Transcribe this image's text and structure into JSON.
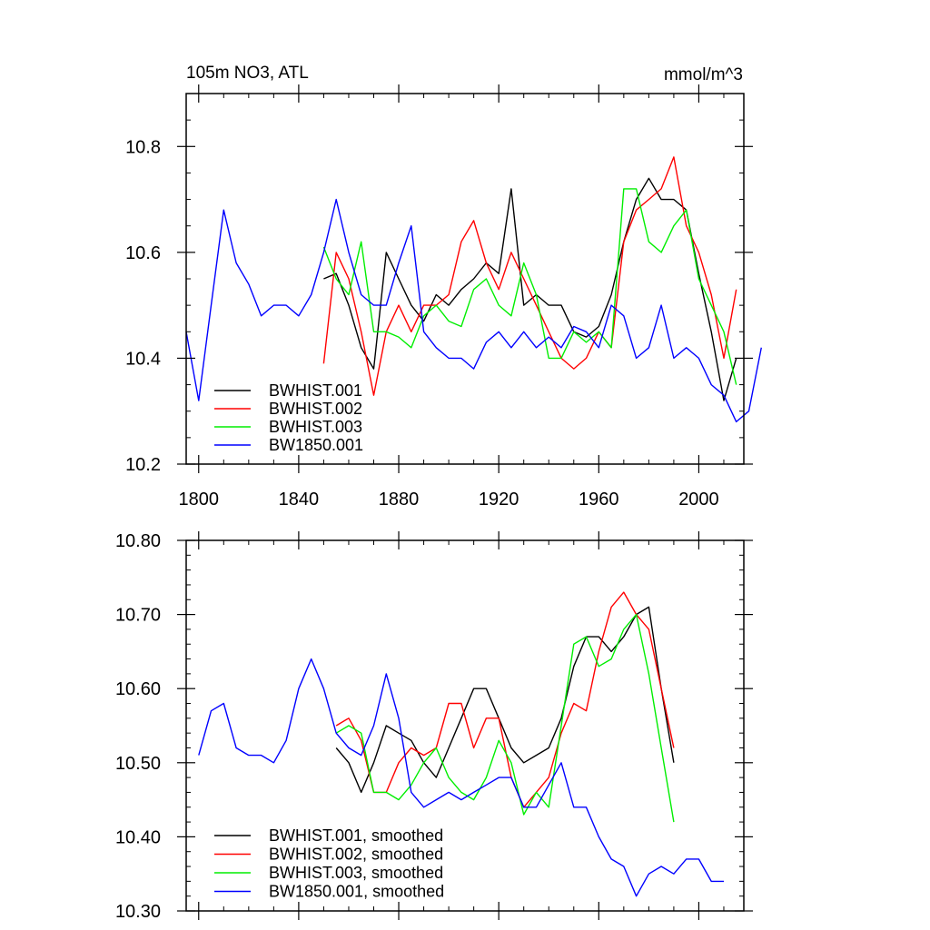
{
  "chart_data": [
    {
      "type": "line",
      "title_left": "105m NO3, ATL",
      "title_right": "mmol/m^3",
      "xlim": [
        1795,
        2018
      ],
      "ylim": [
        10.2,
        10.9
      ],
      "xticks": [
        1800,
        1840,
        1880,
        1920,
        1960,
        2000
      ],
      "yticks": [
        10.2,
        10.4,
        10.6,
        10.8
      ],
      "ytick_labels": [
        "10.2",
        "10.4",
        "10.6",
        "10.8"
      ],
      "legend_position": "bottom-left",
      "series": [
        {
          "name": "BWHIST.001",
          "color": "#000000",
          "x_start": 1850,
          "step": 5,
          "values": [
            10.55,
            10.56,
            10.5,
            10.42,
            10.38,
            10.6,
            10.55,
            10.5,
            10.47,
            10.52,
            10.5,
            10.53,
            10.55,
            10.58,
            10.56,
            10.72,
            10.5,
            10.52,
            10.5,
            10.5,
            10.45,
            10.44,
            10.46,
            10.52,
            10.62,
            10.7,
            10.74,
            10.7,
            10.7,
            10.68,
            10.56,
            10.45,
            10.32,
            10.4
          ]
        },
        {
          "name": "BWHIST.002",
          "color": "#ff0000",
          "x_start": 1850,
          "step": 5,
          "values": [
            10.39,
            10.6,
            10.55,
            10.45,
            10.33,
            10.45,
            10.5,
            10.45,
            10.5,
            10.5,
            10.52,
            10.62,
            10.66,
            10.58,
            10.53,
            10.6,
            10.55,
            10.5,
            10.45,
            10.4,
            10.38,
            10.4,
            10.45,
            10.42,
            10.62,
            10.68,
            10.7,
            10.72,
            10.78,
            10.65,
            10.6,
            10.52,
            10.4,
            10.53
          ]
        },
        {
          "name": "BWHIST.003",
          "color": "#00ee00",
          "x_start": 1850,
          "step": 5,
          "values": [
            10.61,
            10.55,
            10.52,
            10.62,
            10.45,
            10.45,
            10.44,
            10.42,
            10.48,
            10.5,
            10.47,
            10.46,
            10.53,
            10.55,
            10.5,
            10.48,
            10.58,
            10.52,
            10.4,
            10.4,
            10.45,
            10.43,
            10.45,
            10.42,
            10.72,
            10.72,
            10.62,
            10.6,
            10.65,
            10.68,
            10.55,
            10.5,
            10.45,
            10.35
          ]
        },
        {
          "name": "BW1850.001",
          "color": "#0000ff",
          "x_start": 1795,
          "step": 5,
          "values": [
            10.45,
            10.32,
            10.5,
            10.68,
            10.58,
            10.54,
            10.48,
            10.5,
            10.5,
            10.48,
            10.52,
            10.6,
            10.7,
            10.6,
            10.52,
            10.5,
            10.5,
            10.58,
            10.65,
            10.45,
            10.42,
            10.4,
            10.4,
            10.38,
            10.43,
            10.45,
            10.42,
            10.45,
            10.42,
            10.44,
            10.42,
            10.46,
            10.45,
            10.42,
            10.5,
            10.48,
            10.4,
            10.42,
            10.5,
            10.4,
            10.42,
            10.4,
            10.35,
            10.33,
            10.28,
            10.3,
            10.42
          ]
        }
      ]
    },
    {
      "type": "line",
      "xlim": [
        1795,
        2018
      ],
      "ylim": [
        10.3,
        10.8
      ],
      "xticks": [
        1800,
        1840,
        1880,
        1920,
        1960,
        2000
      ],
      "yticks": [
        10.3,
        10.4,
        10.5,
        10.6,
        10.7,
        10.8
      ],
      "ytick_labels": [
        "10.30",
        "10.40",
        "10.50",
        "10.60",
        "10.70",
        "10.80"
      ],
      "legend_position": "bottom-left",
      "series": [
        {
          "name": "BWHIST.001, smoothed",
          "color": "#000000",
          "x_start": 1855,
          "step": 5,
          "values": [
            10.52,
            10.5,
            10.46,
            10.5,
            10.55,
            10.54,
            10.53,
            10.5,
            10.48,
            10.52,
            10.56,
            10.6,
            10.6,
            10.56,
            10.52,
            10.5,
            10.51,
            10.52,
            10.56,
            10.63,
            10.67,
            10.67,
            10.65,
            10.67,
            10.7,
            10.71,
            10.6,
            10.5
          ]
        },
        {
          "name": "BWHIST.002, smoothed",
          "color": "#ff0000",
          "x_start": 1855,
          "step": 5,
          "values": [
            10.55,
            10.56,
            10.53,
            10.46,
            10.46,
            10.5,
            10.52,
            10.51,
            10.52,
            10.58,
            10.58,
            10.52,
            10.56,
            10.56,
            10.48,
            10.44,
            10.46,
            10.48,
            10.54,
            10.58,
            10.57,
            10.65,
            10.71,
            10.73,
            10.7,
            10.68,
            10.6,
            10.52
          ]
        },
        {
          "name": "BWHIST.003, smoothed",
          "color": "#00ee00",
          "x_start": 1855,
          "step": 5,
          "values": [
            10.54,
            10.55,
            10.54,
            10.46,
            10.46,
            10.45,
            10.47,
            10.5,
            10.52,
            10.48,
            10.46,
            10.45,
            10.48,
            10.53,
            10.5,
            10.43,
            10.46,
            10.44,
            10.55,
            10.66,
            10.67,
            10.63,
            10.64,
            10.68,
            10.7,
            10.62,
            10.52,
            10.42
          ]
        },
        {
          "name": "BW1850.001, smoothed",
          "color": "#0000ff",
          "x_start": 1800,
          "step": 5,
          "values": [
            10.51,
            10.57,
            10.58,
            10.52,
            10.51,
            10.51,
            10.5,
            10.53,
            10.6,
            10.64,
            10.6,
            10.54,
            10.52,
            10.51,
            10.55,
            10.62,
            10.56,
            10.46,
            10.44,
            10.45,
            10.46,
            10.45,
            10.46,
            10.47,
            10.48,
            10.48,
            10.44,
            10.44,
            10.47,
            10.5,
            10.44,
            10.44,
            10.4,
            10.37,
            10.36,
            10.32,
            10.35,
            10.36,
            10.35,
            10.37,
            10.37,
            10.34,
            10.34
          ]
        }
      ]
    }
  ]
}
